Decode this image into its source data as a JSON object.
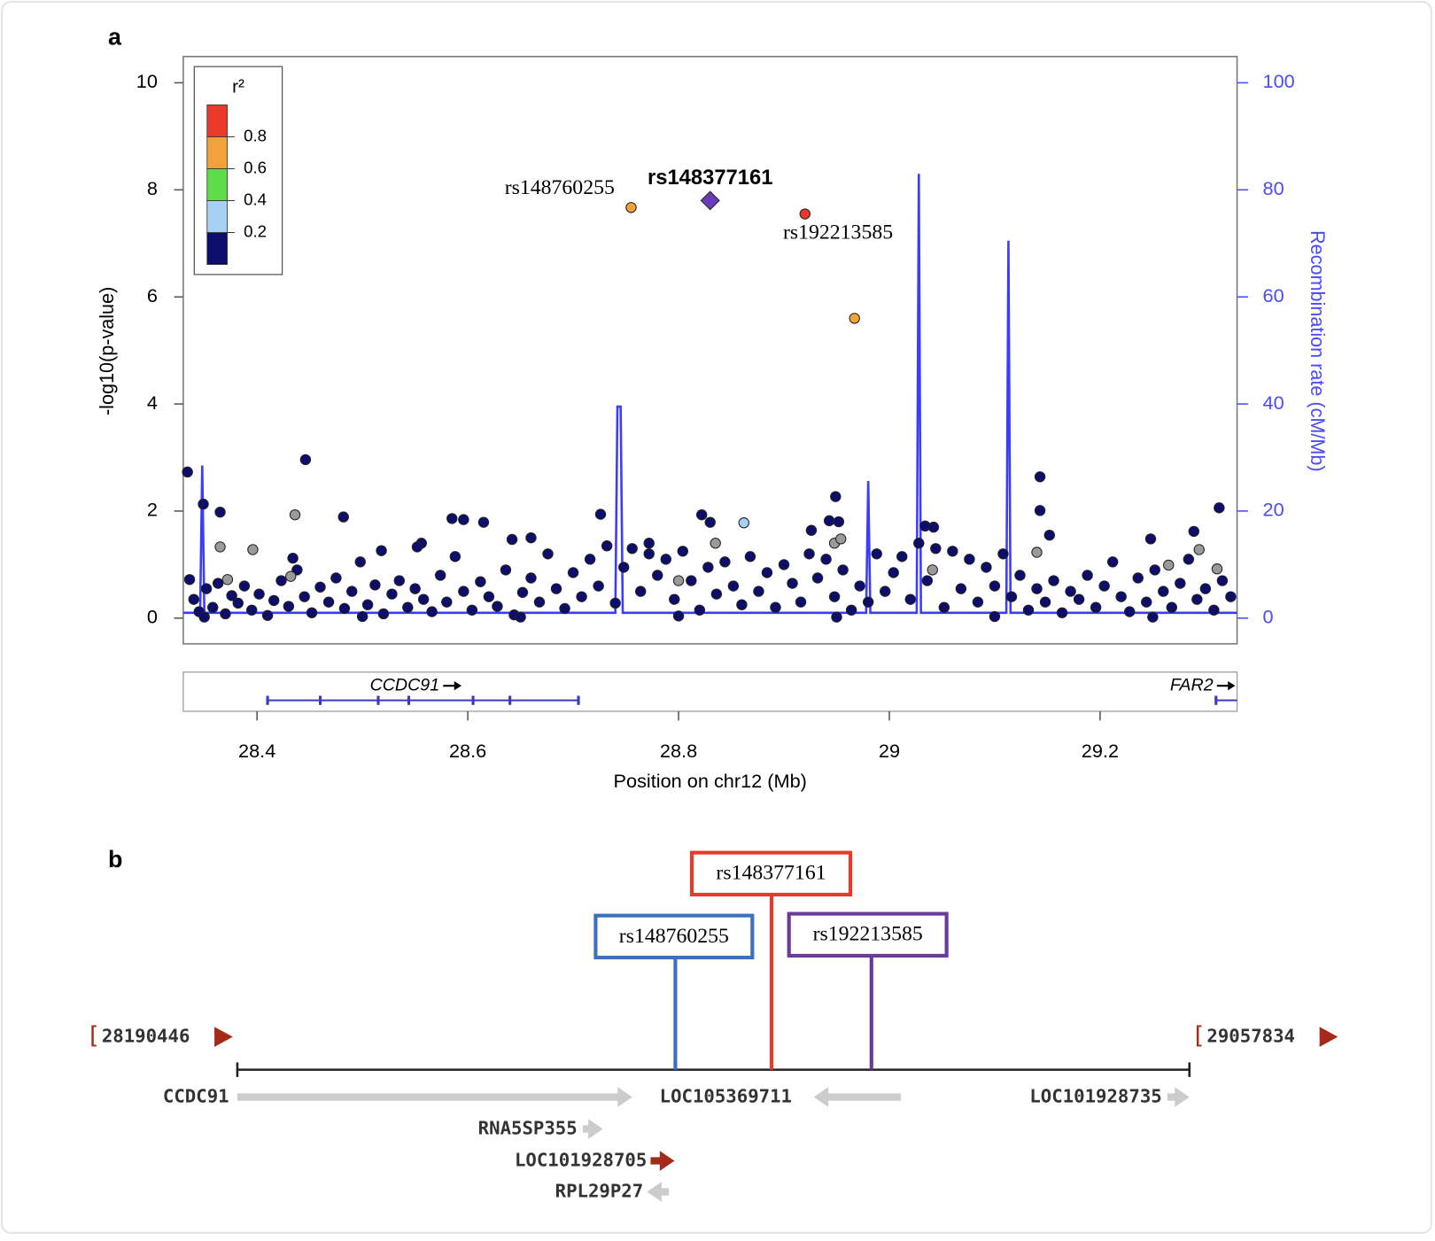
{
  "panel_labels": [
    "a",
    "b"
  ],
  "chart_data": {
    "type": "scatter",
    "xlabel": "Position on chr12 (Mb)",
    "ylabel": "-log10(p-value)",
    "y2label": "Recombination rate (cM/Mb)",
    "xlim": [
      28.33,
      29.33
    ],
    "xticks": [
      28.4,
      28.6,
      28.8,
      29,
      29.2
    ],
    "ylim": [
      -0.48,
      10.49
    ],
    "yticks": [
      0,
      2,
      4,
      6,
      8,
      10
    ],
    "y2lim": [
      -4.8,
      104.9
    ],
    "y2ticks": [
      0,
      20,
      40,
      60,
      80,
      100
    ],
    "y2color": "#4a4aff",
    "legend": {
      "title": "r²",
      "colors": [
        "#0d0d6b",
        "#a6d1f2",
        "#5fdc4a",
        "#f2a23a",
        "#e8392a"
      ],
      "ticks": [
        0.2,
        0.4,
        0.6,
        0.8
      ]
    },
    "recombination": {
      "color": "#3c3cff",
      "axis": "y2",
      "x": [
        28.33,
        28.346,
        28.348,
        28.35,
        28.74,
        28.742,
        28.745,
        28.747,
        28.978,
        28.98,
        28.982,
        29.026,
        29.028,
        29.03,
        29.111,
        29.113,
        29.115,
        29.33
      ],
      "values": [
        1,
        1,
        28.5,
        1,
        1,
        39.5,
        39.5,
        1,
        1,
        25.6,
        1,
        1,
        83,
        1,
        1,
        70.5,
        1,
        1
      ]
    },
    "series": [
      {
        "color": "#0d0d6b",
        "marker": "circle",
        "x": [
          28.336,
          28.34,
          28.345,
          28.352,
          28.358,
          28.363,
          28.37,
          28.376,
          28.382,
          28.388,
          28.395,
          28.402,
          28.41,
          28.416,
          28.423,
          28.43,
          28.438,
          28.445,
          28.452,
          28.46,
          28.468,
          28.475,
          28.483,
          28.49,
          28.498,
          28.505,
          28.512,
          28.52,
          28.528,
          28.535,
          28.543,
          28.55,
          28.558,
          28.566,
          28.574,
          28.58,
          28.588,
          28.596,
          28.604,
          28.612,
          28.62,
          28.628,
          28.636,
          28.644,
          28.652,
          28.66,
          28.668,
          28.676,
          28.684,
          28.692,
          28.7,
          28.708,
          28.716,
          28.724,
          28.732,
          28.74,
          28.748,
          28.756,
          28.764,
          28.772,
          28.78,
          28.788,
          28.796,
          28.804,
          28.812,
          28.82,
          28.828,
          28.836,
          28.844,
          28.852,
          28.86,
          28.868,
          28.876,
          28.884,
          28.892,
          28.9,
          28.908,
          28.916,
          28.924,
          28.932,
          28.94,
          28.948,
          28.956,
          28.964,
          28.972,
          28.98,
          28.988,
          28.996,
          29.004,
          29.012,
          29.02,
          29.028,
          29.036,
          29.044,
          29.052,
          29.06,
          29.068,
          29.076,
          29.084,
          29.092,
          29.1,
          29.108,
          29.116,
          29.124,
          29.132,
          29.14,
          29.148,
          29.156,
          29.164,
          29.172,
          29.18,
          29.188,
          29.196,
          29.204,
          29.212,
          29.22,
          29.228,
          29.236,
          29.244,
          29.252,
          29.26,
          29.268,
          29.276,
          29.284,
          29.292,
          29.3,
          29.308,
          29.316,
          29.324,
          28.35,
          28.5,
          28.65,
          28.8,
          28.95,
          29.1,
          29.25,
          28.334,
          28.349,
          28.365,
          28.446,
          28.482,
          28.585,
          28.596,
          28.615,
          28.726,
          28.822,
          28.83,
          28.949,
          29.143,
          29.143,
          29.313,
          29.152,
          29.034,
          29.042,
          28.926,
          28.943,
          28.952,
          28.642,
          28.66,
          29.289,
          29.248,
          28.556,
          28.552,
          28.518,
          28.434,
          28.772
        ],
        "values": [
          0.72,
          0.35,
          0.12,
          0.55,
          0.2,
          0.65,
          0.08,
          0.42,
          0.28,
          0.6,
          0.15,
          0.45,
          0.05,
          0.33,
          0.7,
          0.22,
          0.9,
          0.4,
          0.1,
          0.58,
          0.3,
          0.75,
          0.18,
          0.5,
          1.05,
          0.25,
          0.62,
          0.08,
          0.45,
          0.7,
          0.2,
          0.55,
          0.35,
          0.12,
          0.8,
          0.3,
          1.15,
          0.5,
          0.15,
          0.68,
          0.4,
          0.22,
          0.9,
          0.06,
          0.48,
          0.75,
          0.3,
          1.2,
          0.55,
          0.18,
          0.85,
          0.4,
          1.1,
          0.6,
          1.35,
          0.28,
          0.95,
          1.3,
          0.5,
          1.2,
          0.8,
          1.1,
          0.35,
          1.25,
          0.7,
          0.15,
          0.95,
          0.45,
          1.05,
          0.6,
          0.25,
          1.15,
          0.5,
          0.85,
          0.2,
          1.0,
          0.65,
          0.3,
          1.2,
          0.75,
          1.1,
          0.4,
          0.9,
          0.15,
          0.6,
          0.3,
          1.2,
          0.5,
          0.85,
          1.15,
          0.35,
          1.4,
          0.7,
          1.3,
          0.2,
          1.25,
          0.55,
          1.1,
          0.3,
          0.95,
          0.6,
          1.2,
          0.4,
          0.8,
          0.15,
          0.55,
          0.3,
          0.7,
          0.1,
          0.5,
          0.35,
          0.8,
          0.2,
          0.6,
          1.05,
          0.4,
          0.12,
          0.75,
          0.3,
          0.9,
          0.5,
          0.2,
          0.65,
          1.1,
          0.35,
          0.55,
          0.15,
          0.7,
          0.4,
          0.02,
          0.03,
          0.02,
          0.04,
          0.02,
          0.03,
          0.02,
          2.73,
          2.13,
          1.98,
          2.96,
          1.89,
          1.86,
          1.84,
          1.79,
          1.94,
          1.93,
          1.79,
          2.27,
          2.64,
          2.01,
          2.06,
          1.55,
          1.72,
          1.7,
          1.64,
          1.82,
          1.8,
          1.47,
          1.5,
          1.62,
          1.48,
          1.4,
          1.33,
          1.26,
          1.12,
          1.4
        ]
      },
      {
        "color": "#9a9a9a",
        "marker": "circle",
        "x": [
          28.436,
          28.365,
          28.396,
          28.835,
          28.948,
          28.954,
          29.14,
          29.265,
          29.294,
          29.311,
          28.432,
          28.372,
          29.041,
          28.8
        ],
        "values": [
          1.93,
          1.33,
          1.28,
          1.4,
          1.4,
          1.48,
          1.23,
          0.99,
          1.28,
          0.92,
          0.78,
          0.72,
          0.9,
          0.7
        ]
      },
      {
        "color": "#a6d1f2",
        "marker": "circle",
        "x": [
          28.862
        ],
        "values": [
          1.78
        ]
      },
      {
        "color": "#f2a23a",
        "marker": "circle",
        "x": [
          28.967
        ],
        "values": [
          5.6
        ]
      },
      {
        "color": "#f2a23a",
        "marker": "circle",
        "x": [
          28.755
        ],
        "values": [
          7.67
        ],
        "labels": [
          "rs148760255"
        ]
      },
      {
        "color": "#e8392a",
        "marker": "circle",
        "x": [
          28.92
        ],
        "values": [
          7.55
        ],
        "labels": [
          "rs192213585"
        ]
      },
      {
        "color": "#6a3db8",
        "marker": "diamond",
        "x": [
          28.83
        ],
        "values": [
          7.8
        ],
        "labels": [
          "rs148377161"
        ]
      }
    ],
    "genes": [
      {
        "name": "CCDC91",
        "start": 28.41,
        "end": 28.705,
        "exons": [
          28.41,
          28.46,
          28.515,
          28.544,
          28.605,
          28.64,
          28.705
        ],
        "color": "#3a3ac0"
      },
      {
        "name": "FAR2",
        "start": 29.31,
        "end": 29.33,
        "exons": [
          29.31
        ],
        "color": "#3a3ac0"
      }
    ]
  },
  "diagram": {
    "range_start": 28190446,
    "range_end": 29057834,
    "snps": [
      {
        "label": "rs148377161",
        "color": "#e8392a"
      },
      {
        "label": "rs148760255",
        "color": "#3a70c0"
      },
      {
        "label": "rs192213585",
        "color": "#6a3a9a"
      }
    ],
    "genes": [
      {
        "name": "CCDC91",
        "direction": "right",
        "color": "#cccccc"
      },
      {
        "name": "LOC105369711",
        "direction": "left",
        "color": "#cccccc"
      },
      {
        "name": "LOC101928735",
        "direction": "right",
        "color": "#cccccc"
      },
      {
        "name": "RNA5SP355",
        "direction": "right",
        "color": "#cccccc"
      },
      {
        "name": "LOC101928705",
        "direction": "right",
        "color": "#a52a1a"
      },
      {
        "name": "RPL29P27",
        "direction": "left",
        "color": "#cccccc"
      }
    ]
  }
}
